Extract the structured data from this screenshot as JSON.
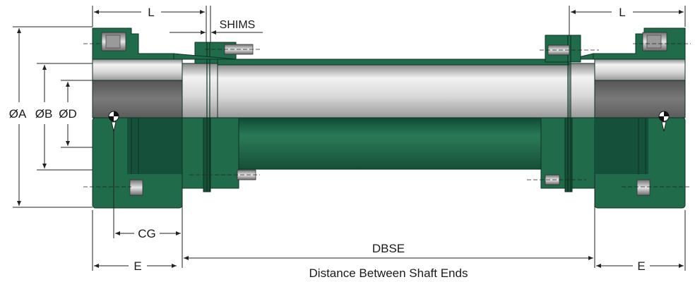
{
  "labels": {
    "L_left": "L",
    "L_right": "L",
    "shims": "SHIMS",
    "dia_a": "ØA",
    "dia_b": "ØB",
    "dia_d": "ØD",
    "cg": "CG",
    "dbse": "DBSE",
    "e_left": "E",
    "e_right": "E",
    "caption": "Distance Between Shaft Ends"
  },
  "colors": {
    "coupling_green": "#1f6b4a",
    "coupling_green_dark": "#15513a",
    "shaft_silver": "#c9c9c9",
    "shaft_dark": "#6e6e6e",
    "line": "#222222"
  },
  "icons": {
    "center_of_gravity": "center-of-gravity-icon",
    "bolt": "bolt-icon"
  }
}
